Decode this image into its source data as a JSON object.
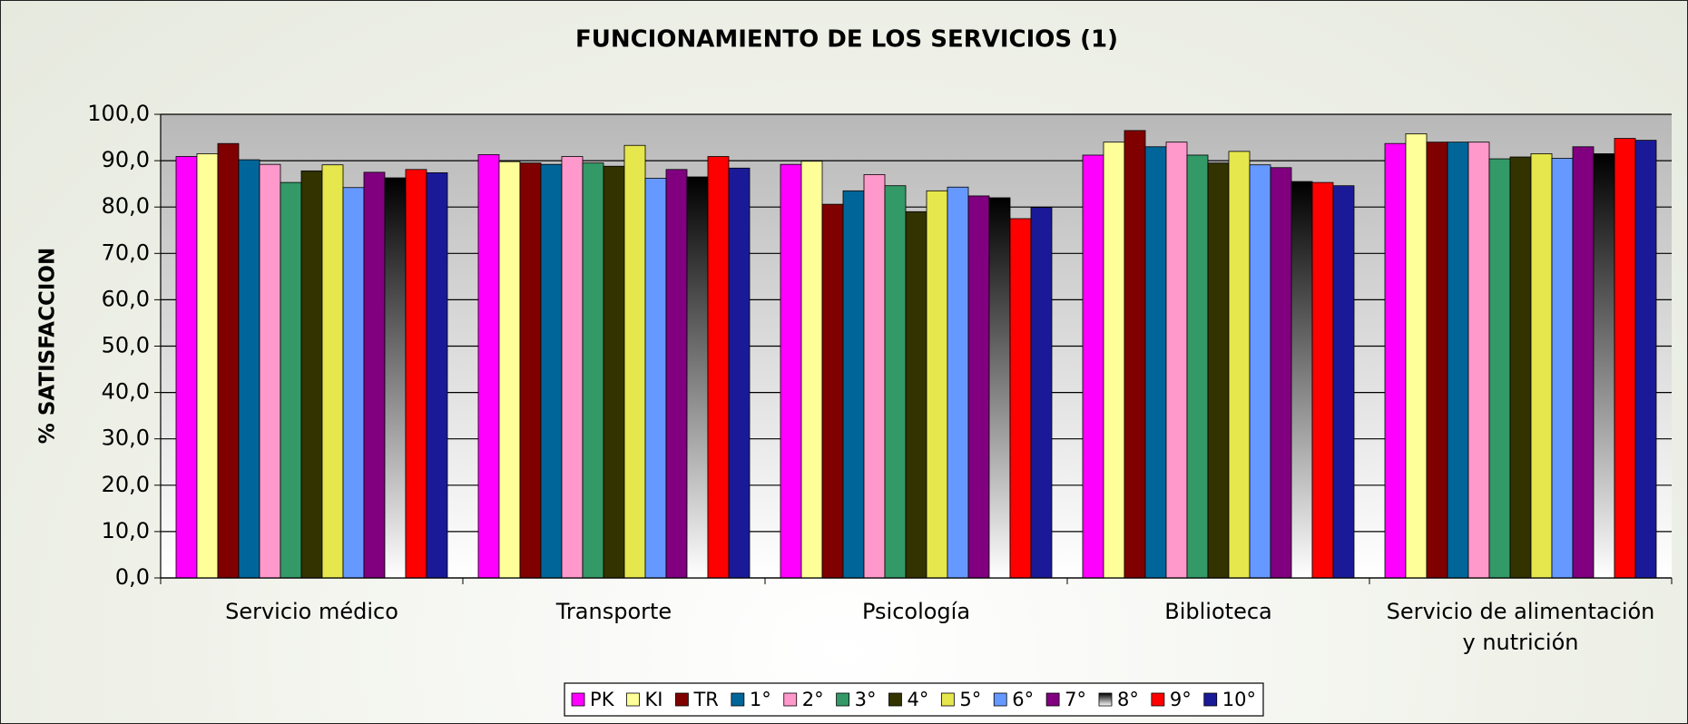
{
  "chart_data": {
    "type": "bar",
    "title": "FUNCIONAMIENTO DE LOS SERVICIOS (1)",
    "y_label": "% SATISFACCION",
    "categories": [
      "Servicio médico",
      "Transporte",
      "Psicología",
      "Biblioteca",
      "Servicio de alimentación y nutrición"
    ],
    "series": [
      {
        "name": "PK",
        "color": "#ff00ff",
        "values": [
          90.9,
          91.3,
          89.2,
          91.2,
          93.7
        ]
      },
      {
        "name": "KI",
        "color": "#ffff99",
        "values": [
          91.5,
          89.8,
          89.9,
          94.0,
          95.8
        ]
      },
      {
        "name": "TR",
        "color": "#800000",
        "values": [
          93.7,
          89.5,
          80.6,
          96.5,
          94.0
        ]
      },
      {
        "name": "1°",
        "color": "#006699",
        "values": [
          90.2,
          89.2,
          83.5,
          93.0,
          94.0
        ]
      },
      {
        "name": "2°",
        "color": "#ff99cc",
        "values": [
          89.2,
          90.9,
          87.0,
          94.0,
          94.0
        ]
      },
      {
        "name": "3°",
        "color": "#339966",
        "values": [
          85.3,
          89.5,
          84.6,
          91.2,
          90.4
        ]
      },
      {
        "name": "4°",
        "color": "#333300",
        "values": [
          87.8,
          88.8,
          79.0,
          89.5,
          90.8
        ]
      },
      {
        "name": "5°",
        "color": "#e6e64d",
        "values": [
          89.1,
          93.3,
          83.5,
          92.0,
          91.5
        ]
      },
      {
        "name": "6°",
        "color": "#6699ff",
        "values": [
          84.2,
          86.2,
          84.3,
          89.1,
          90.5
        ]
      },
      {
        "name": "7°",
        "color": "#800080",
        "values": [
          87.5,
          88.1,
          82.4,
          88.5,
          93.0
        ]
      },
      {
        "name": "8°",
        "color": "#000000",
        "values": [
          86.3,
          86.5,
          82.0,
          85.5,
          91.5
        ]
      },
      {
        "name": "9°",
        "color": "#ff0000",
        "values": [
          88.1,
          90.9,
          77.5,
          85.3,
          94.8
        ]
      },
      {
        "name": "10°",
        "color": "#1a1a99",
        "values": [
          87.4,
          88.4,
          79.9,
          84.6,
          94.4
        ]
      }
    ],
    "ylim": [
      0,
      100
    ],
    "yticks": [
      {
        "value": 0,
        "label": "0,0"
      },
      {
        "value": 10,
        "label": "10,0"
      },
      {
        "value": 20,
        "label": "20,0"
      },
      {
        "value": 30,
        "label": "30,0"
      },
      {
        "value": 40,
        "label": "40,0"
      },
      {
        "value": 50,
        "label": "50,0"
      },
      {
        "value": 60,
        "label": "60,0"
      },
      {
        "value": 70,
        "label": "70,0"
      },
      {
        "value": 80,
        "label": "80,0"
      },
      {
        "value": 90,
        "label": "90,0"
      },
      {
        "value": 100,
        "label": "100,0"
      }
    ],
    "grid": true
  }
}
